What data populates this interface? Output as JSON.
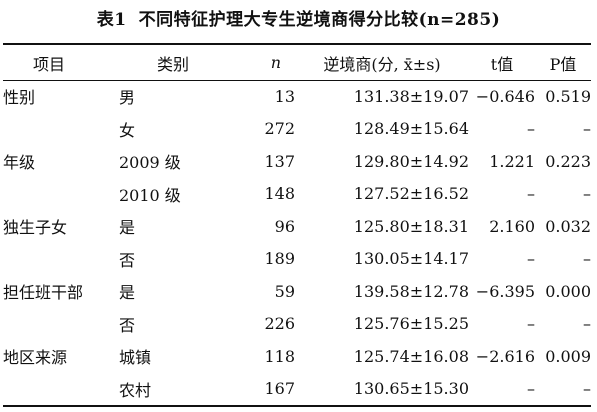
{
  "table": {
    "caption_number": "表1",
    "caption_text": "不同特征护理大专生逆境商得分比较(n=285)",
    "headers": {
      "item": "项目",
      "category": "类别",
      "n": "n",
      "score": "逆境商(分, x̄±s)",
      "t": "t值",
      "p": "P值"
    },
    "rows": [
      {
        "item": "性别",
        "category": "男",
        "n": "13",
        "score": "131.38±19.07",
        "t": "−0.646",
        "p": "0.519"
      },
      {
        "item": "",
        "category": "女",
        "n": "272",
        "score": "128.49±15.64",
        "t": "–",
        "p": "–"
      },
      {
        "item": "年级",
        "category": "2009 级",
        "n": "137",
        "score": "129.80±14.92",
        "t": "1.221",
        "p": "0.223"
      },
      {
        "item": "",
        "category": "2010 级",
        "n": "148",
        "score": "127.52±16.52",
        "t": "–",
        "p": "–"
      },
      {
        "item": "独生子女",
        "category": "是",
        "n": "96",
        "score": "125.80±18.31",
        "t": "2.160",
        "p": "0.032"
      },
      {
        "item": "",
        "category": "否",
        "n": "189",
        "score": "130.05±14.17",
        "t": "–",
        "p": "–"
      },
      {
        "item": "担任班干部",
        "category": "是",
        "n": "59",
        "score": "139.58±12.78",
        "t": "−6.395",
        "p": "0.000"
      },
      {
        "item": "",
        "category": "否",
        "n": "226",
        "score": "125.76±15.25",
        "t": "–",
        "p": "–"
      },
      {
        "item": "地区来源",
        "category": "城镇",
        "n": "118",
        "score": "125.74±16.08",
        "t": "−2.616",
        "p": "0.009"
      },
      {
        "item": "",
        "category": "农村",
        "n": "167",
        "score": "130.65±15.30",
        "t": "–",
        "p": "–"
      }
    ]
  }
}
